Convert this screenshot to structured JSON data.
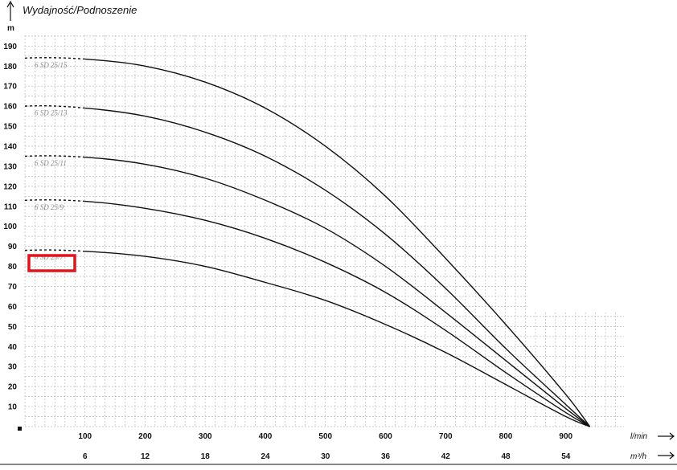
{
  "chart_data": {
    "type": "line",
    "title": "Wydajność/Podnoszenie",
    "ylabel": "m",
    "xlabel": "l/min",
    "xlabel2": "m³/h",
    "ylim": [
      0,
      195
    ],
    "xlim": [
      0,
      1000
    ],
    "y_ticks": [
      "10",
      "20",
      "30",
      "40",
      "50",
      "60",
      "70",
      "80",
      "90",
      "100",
      "110",
      "120",
      "130",
      "140",
      "150",
      "160",
      "170",
      "180",
      "190"
    ],
    "x_ticks_lmin": [
      "100",
      "200",
      "300",
      "400",
      "500",
      "600",
      "700",
      "800",
      "900"
    ],
    "x_ticks_m3h": [
      "6",
      "12",
      "18",
      "24",
      "30",
      "36",
      "42",
      "48",
      "54"
    ],
    "grid": true,
    "highlighted_series": "6 SD 25/7",
    "highlight_color": "#e0141a",
    "series": [
      {
        "name": "6 SD 25/15",
        "x": [
          0,
          100,
          200,
          300,
          400,
          500,
          600,
          700,
          800,
          900,
          940
        ],
        "y": [
          184,
          183.5,
          180,
          172,
          159,
          140,
          115,
          84,
          51,
          16,
          0
        ]
      },
      {
        "name": "6 SD 25/13",
        "x": [
          0,
          100,
          200,
          300,
          400,
          500,
          600,
          700,
          800,
          900,
          940
        ],
        "y": [
          160,
          159,
          155,
          147,
          135,
          118,
          96,
          69,
          39,
          11,
          0
        ]
      },
      {
        "name": "6 SD 25/11",
        "x": [
          0,
          100,
          200,
          300,
          400,
          500,
          600,
          700,
          800,
          900,
          940
        ],
        "y": [
          135,
          134.5,
          131,
          124,
          113,
          99,
          80,
          57,
          33,
          9,
          0
        ]
      },
      {
        "name": "6 SD 25/9",
        "x": [
          0,
          100,
          200,
          300,
          400,
          500,
          600,
          700,
          800,
          900,
          940
        ],
        "y": [
          113,
          112.5,
          109,
          103,
          94,
          82,
          67,
          48,
          27,
          7,
          0
        ]
      },
      {
        "name": "6 SD 25/7",
        "x": [
          0,
          100,
          200,
          300,
          400,
          500,
          600,
          700,
          800,
          900,
          940
        ],
        "y": [
          88,
          87.5,
          85,
          80,
          72,
          63,
          51,
          37,
          21,
          5,
          0
        ]
      }
    ]
  }
}
